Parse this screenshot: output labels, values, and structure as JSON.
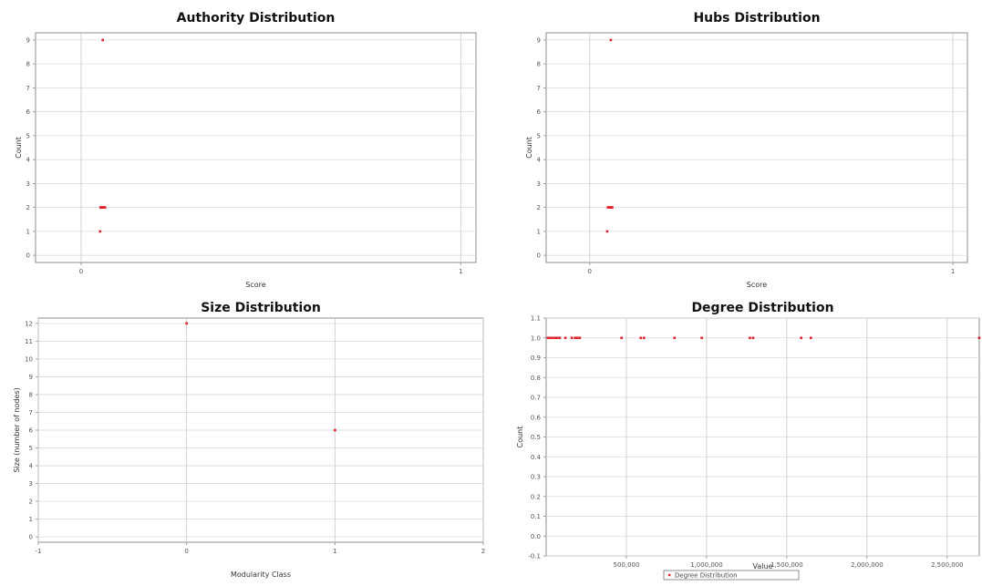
{
  "colors": {
    "marker": "#e0202a",
    "grid": "#d9d9d9",
    "plot_border": "#8c8c8c",
    "axis_zero": "#c8c8c8",
    "plot_bg": "#ffffff"
  },
  "chart_data": [
    {
      "id": "authority",
      "type": "scatter",
      "title": "Authority Distribution",
      "xlabel": "Score",
      "ylabel": "Count",
      "xlim": [
        -0.12,
        1.04
      ],
      "ylim": [
        -0.3,
        9.3
      ],
      "xticks": [
        0,
        1
      ],
      "xtick_labels": [
        "0",
        "1"
      ],
      "yticks": [
        0,
        1,
        2,
        3,
        4,
        5,
        6,
        7,
        8,
        9
      ],
      "ytick_labels": [
        "0",
        "1",
        "2",
        "3",
        "4",
        "5",
        "6",
        "7",
        "8",
        "9"
      ],
      "grid": true,
      "legend": "none",
      "points": [
        {
          "x": 0.05,
          "y": 1
        },
        {
          "x": 0.057,
          "y": 9
        },
        {
          "x": 0.051,
          "y": 2
        },
        {
          "x": 0.053,
          "y": 2
        },
        {
          "x": 0.055,
          "y": 2
        },
        {
          "x": 0.057,
          "y": 2
        },
        {
          "x": 0.059,
          "y": 2
        },
        {
          "x": 0.061,
          "y": 2
        },
        {
          "x": 0.063,
          "y": 2
        }
      ]
    },
    {
      "id": "hubs",
      "type": "scatter",
      "title": "Hubs Distribution",
      "xlabel": "Score",
      "ylabel": "Count",
      "xlim": [
        -0.12,
        1.04
      ],
      "ylim": [
        -0.3,
        9.3
      ],
      "xticks": [
        0,
        1
      ],
      "xtick_labels": [
        "0",
        "1"
      ],
      "yticks": [
        0,
        1,
        2,
        3,
        4,
        5,
        6,
        7,
        8,
        9
      ],
      "ytick_labels": [
        "0",
        "1",
        "2",
        "3",
        "4",
        "5",
        "6",
        "7",
        "8",
        "9"
      ],
      "grid": true,
      "legend": "none",
      "points": [
        {
          "x": 0.048,
          "y": 1
        },
        {
          "x": 0.058,
          "y": 9
        },
        {
          "x": 0.05,
          "y": 2
        },
        {
          "x": 0.052,
          "y": 2
        },
        {
          "x": 0.054,
          "y": 2
        },
        {
          "x": 0.056,
          "y": 2
        },
        {
          "x": 0.058,
          "y": 2
        },
        {
          "x": 0.06,
          "y": 2
        },
        {
          "x": 0.062,
          "y": 2
        }
      ]
    },
    {
      "id": "size",
      "type": "scatter",
      "title": "Size Distribution",
      "xlabel": "Modularity Class",
      "ylabel": "Size (number of nodes)",
      "xlim": [
        -1,
        2
      ],
      "ylim": [
        -0.3,
        12.3
      ],
      "xticks": [
        -1,
        0,
        1,
        2
      ],
      "xtick_labels": [
        "-1",
        "0",
        "1",
        "2"
      ],
      "yticks": [
        0,
        1,
        2,
        3,
        4,
        5,
        6,
        7,
        8,
        9,
        10,
        11,
        12
      ],
      "ytick_labels": [
        "0",
        "1",
        "2",
        "3",
        "4",
        "5",
        "6",
        "7",
        "8",
        "9",
        "10",
        "11",
        "12"
      ],
      "grid": true,
      "legend": "none",
      "points": [
        {
          "x": 0,
          "y": 12
        },
        {
          "x": 1,
          "y": 6
        }
      ]
    },
    {
      "id": "degree",
      "type": "scatter",
      "title": "Degree Distribution",
      "xlabel": "Value",
      "ylabel": "Count",
      "xlim": [
        0,
        2700000
      ],
      "ylim": [
        -0.1,
        1.1
      ],
      "xticks": [
        500000,
        1000000,
        1500000,
        2000000,
        2500000
      ],
      "xtick_labels": [
        "500,000",
        "1,000,000",
        "1,500,000",
        "2,000,000",
        "2,500,000"
      ],
      "yticks": [
        -0.1,
        0.0,
        0.1,
        0.2,
        0.3,
        0.4,
        0.5,
        0.6,
        0.7,
        0.8,
        0.9,
        1.0,
        1.1
      ],
      "ytick_labels": [
        "-0.1",
        "0.0",
        "0.1",
        "0.2",
        "0.3",
        "0.4",
        "0.5",
        "0.6",
        "0.7",
        "0.8",
        "0.9",
        "1.0",
        "1.1"
      ],
      "grid": true,
      "legend": "bottom-center",
      "legend_label": "Degree Distribution",
      "points": [
        {
          "x": 10000,
          "y": 1
        },
        {
          "x": 25000,
          "y": 1
        },
        {
          "x": 40000,
          "y": 1
        },
        {
          "x": 55000,
          "y": 1
        },
        {
          "x": 70000,
          "y": 1
        },
        {
          "x": 85000,
          "y": 1
        },
        {
          "x": 120000,
          "y": 1
        },
        {
          "x": 160000,
          "y": 1
        },
        {
          "x": 180000,
          "y": 1
        },
        {
          "x": 195000,
          "y": 1
        },
        {
          "x": 210000,
          "y": 1
        },
        {
          "x": 470000,
          "y": 1
        },
        {
          "x": 590000,
          "y": 1
        },
        {
          "x": 610000,
          "y": 1
        },
        {
          "x": 800000,
          "y": 1
        },
        {
          "x": 970000,
          "y": 1
        },
        {
          "x": 1270000,
          "y": 1
        },
        {
          "x": 1290000,
          "y": 1
        },
        {
          "x": 1590000,
          "y": 1
        },
        {
          "x": 1650000,
          "y": 1
        },
        {
          "x": 2700000,
          "y": 1
        }
      ]
    }
  ]
}
